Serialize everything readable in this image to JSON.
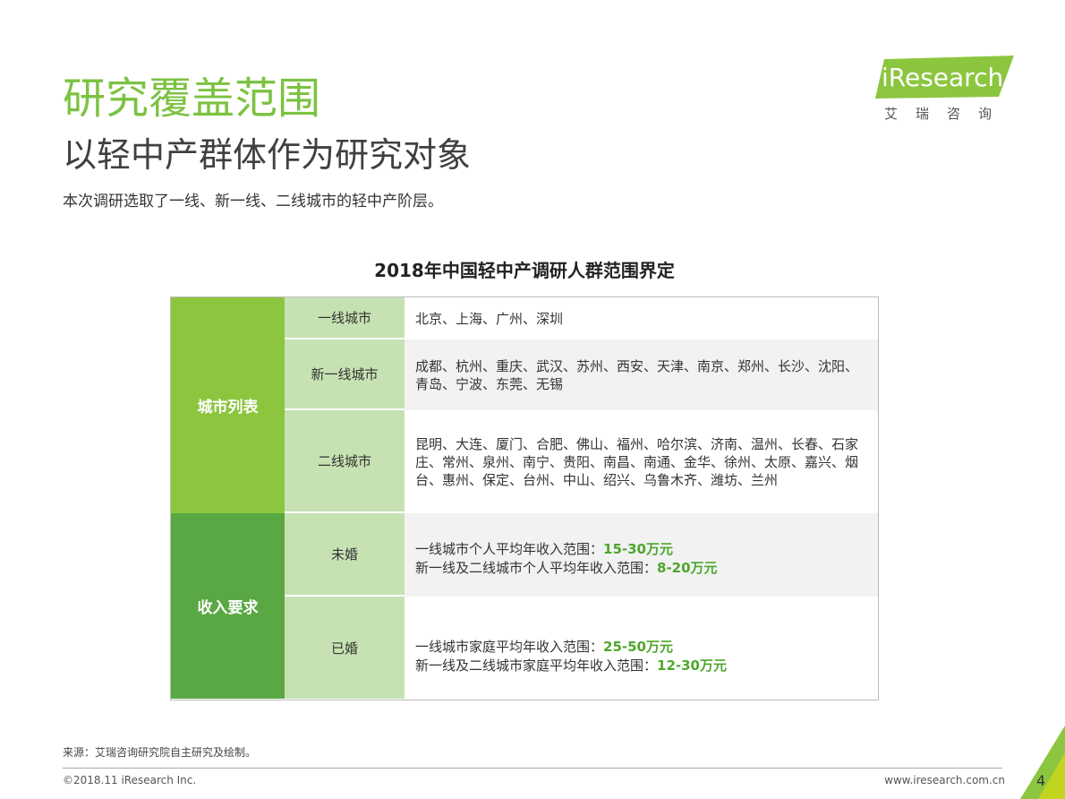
{
  "header": {
    "title": "研究覆盖范围",
    "subtitle": "以轻中产群体作为研究对象",
    "description": "本次调研选取了一线、新一线、二线城市的轻中产阶层。"
  },
  "logo": {
    "brand": "iResearch",
    "tagline": "艾瑞咨询"
  },
  "table": {
    "title": "2018年中国轻中产调研人群范围界定",
    "groups": [
      {
        "label": "城市列表",
        "rows": [
          {
            "label": "一线城市",
            "content": "北京、上海、广州、深圳"
          },
          {
            "label": "新一线城市",
            "content": "成都、杭州、重庆、武汉、苏州、西安、天津、南京、郑州、长沙、沈阳、青岛、宁波、东莞、无锡"
          },
          {
            "label": "二线城市",
            "content": "昆明、大连、厦门、合肥、佛山、福州、哈尔滨、济南、温州、长春、石家庄、常州、泉州、南宁、贵阳、南昌、南通、金华、徐州、太原、嘉兴、烟台、惠州、保定、台州、中山、绍兴、乌鲁木齐、潍坊、兰州"
          }
        ]
      },
      {
        "label": "收入要求",
        "rows": [
          {
            "label": "未婚",
            "lines": [
              {
                "text": "一线城市个人平均年收入范围：",
                "value": "15-30万元"
              },
              {
                "text": "新一线及二线城市个人平均年收入范围：",
                "value": "8-20万元"
              }
            ]
          },
          {
            "label": "已婚",
            "lines": [
              {
                "text": "一线城市家庭平均年收入范围：",
                "value": "25-50万元"
              },
              {
                "text": "新一线及二线城市家庭平均年收入范围：",
                "value": "12-30万元"
              }
            ]
          }
        ]
      }
    ]
  },
  "footer": {
    "source": "来源：艾瑞咨询研究院自主研究及绘制。",
    "copyright": "©2018.11 iResearch Inc.",
    "url": "www.iresearch.com.cn",
    "page": 4
  }
}
